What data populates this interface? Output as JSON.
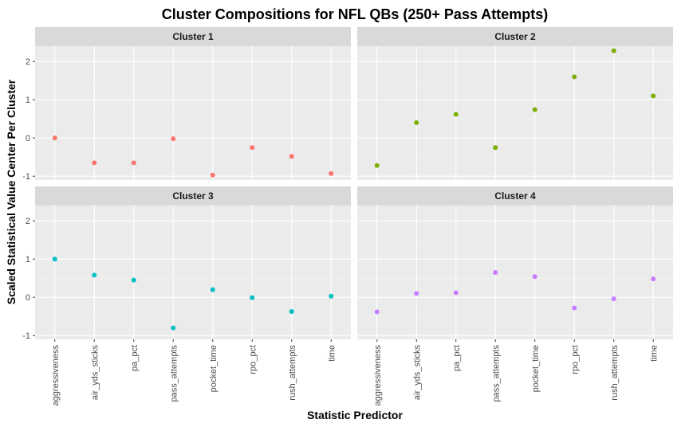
{
  "chart_data": {
    "type": "scatter",
    "title": "Cluster Compositions for NFL QBs (250+ Pass Attempts)",
    "xlabel": "Statistic Predictor",
    "ylabel": "Scaled Statistical Value Center Per Cluster",
    "categories": [
      "aggressiveness",
      "air_yds_sticks",
      "pa_pct",
      "pass_attempts",
      "pocket_time",
      "rpo_pct",
      "rush_attempts",
      "time"
    ],
    "ylim": [
      -1.1,
      2.4
    ],
    "yticks": [
      -1,
      0,
      1,
      2
    ],
    "grid": true,
    "legend": "none",
    "panels": [
      {
        "name": "Cluster 1",
        "color": "#F8766D",
        "values": [
          0.0,
          -0.65,
          -0.65,
          -0.02,
          -0.97,
          -0.25,
          -0.48,
          -0.93
        ]
      },
      {
        "name": "Cluster 2",
        "color": "#7CAE00",
        "values": [
          -0.72,
          0.4,
          0.62,
          -0.25,
          0.74,
          1.6,
          2.28,
          1.1
        ]
      },
      {
        "name": "Cluster 3",
        "color": "#00BFC4",
        "values": [
          1.0,
          0.58,
          0.45,
          -0.8,
          0.2,
          -0.01,
          -0.37,
          0.03
        ]
      },
      {
        "name": "Cluster 4",
        "color": "#C77CFF",
        "values": [
          -0.38,
          0.1,
          0.12,
          0.65,
          0.54,
          -0.28,
          -0.04,
          0.48
        ]
      }
    ]
  }
}
